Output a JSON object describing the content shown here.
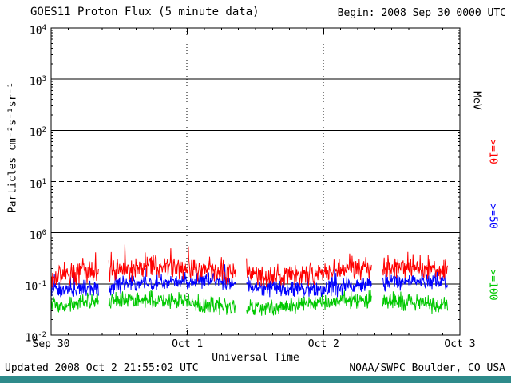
{
  "header": {
    "begin_label": "Begin: 2008 Sep 30 0000 UTC"
  },
  "footer": {
    "updated_label": "Updated 2008 Oct  2 21:55:02 UTC",
    "credit_label": "NOAA/SWPC Boulder, CO USA",
    "bar_color": "#2E8B8B"
  },
  "chart_data": {
    "type": "line",
    "title": "GOES11 Proton Flux (5 minute data)",
    "xlabel": "Universal Time",
    "ylabel": "Particles cm⁻²s⁻¹sr⁻¹",
    "right_axis_label": "MeV",
    "y_scale": "log",
    "y_range": [
      0.01,
      10000
    ],
    "y_tick_exponents": [
      4,
      3,
      2,
      1,
      0,
      -1,
      -2
    ],
    "x_range_hours": 72,
    "x_ticks": [
      {
        "label": "Sep 30",
        "hour": 0
      },
      {
        "label": "Oct 1",
        "hour": 24
      },
      {
        "label": "Oct 2",
        "hour": 48
      },
      {
        "label": "Oct 3",
        "hour": 72
      }
    ],
    "grid": {
      "decade_lines_solid_exponents": [
        3,
        2,
        0,
        -1
      ],
      "decade_line_dashed_exponents": [
        1
      ],
      "day_lines_dotted_hours": [
        24,
        48
      ]
    },
    "sample_minutes": 5,
    "data_start_hour": 0,
    "data_end_hour": 69.9,
    "data_gaps_hours": [
      [
        8.4,
        10.1
      ],
      [
        32.5,
        34.4
      ],
      [
        56.5,
        58.4
      ]
    ],
    "series": [
      {
        "name": ">=10",
        "unit": "MeV",
        "color": "#FF0000",
        "baseline_flux": 0.18,
        "log_spread": 0.27,
        "spike_probability": 0.05,
        "spike_log_mag": 0.3,
        "approx_range": [
          0.1,
          0.6
        ],
        "seed": 11
      },
      {
        "name": ">=50",
        "unit": "MeV",
        "color": "#0000FF",
        "baseline_flux": 0.095,
        "log_spread": 0.2,
        "spike_probability": 0.04,
        "spike_log_mag": 0.28,
        "approx_range": [
          0.06,
          0.3
        ],
        "seed": 23
      },
      {
        "name": ">=100",
        "unit": "MeV",
        "color": "#00C800",
        "baseline_flux": 0.042,
        "log_spread": 0.2,
        "spike_probability": 0.02,
        "spike_log_mag": 0.2,
        "approx_range": [
          0.025,
          0.1
        ],
        "seed": 37
      }
    ],
    "threshold_line": {
      "value_exponent": 1,
      "style": "dashed"
    }
  }
}
